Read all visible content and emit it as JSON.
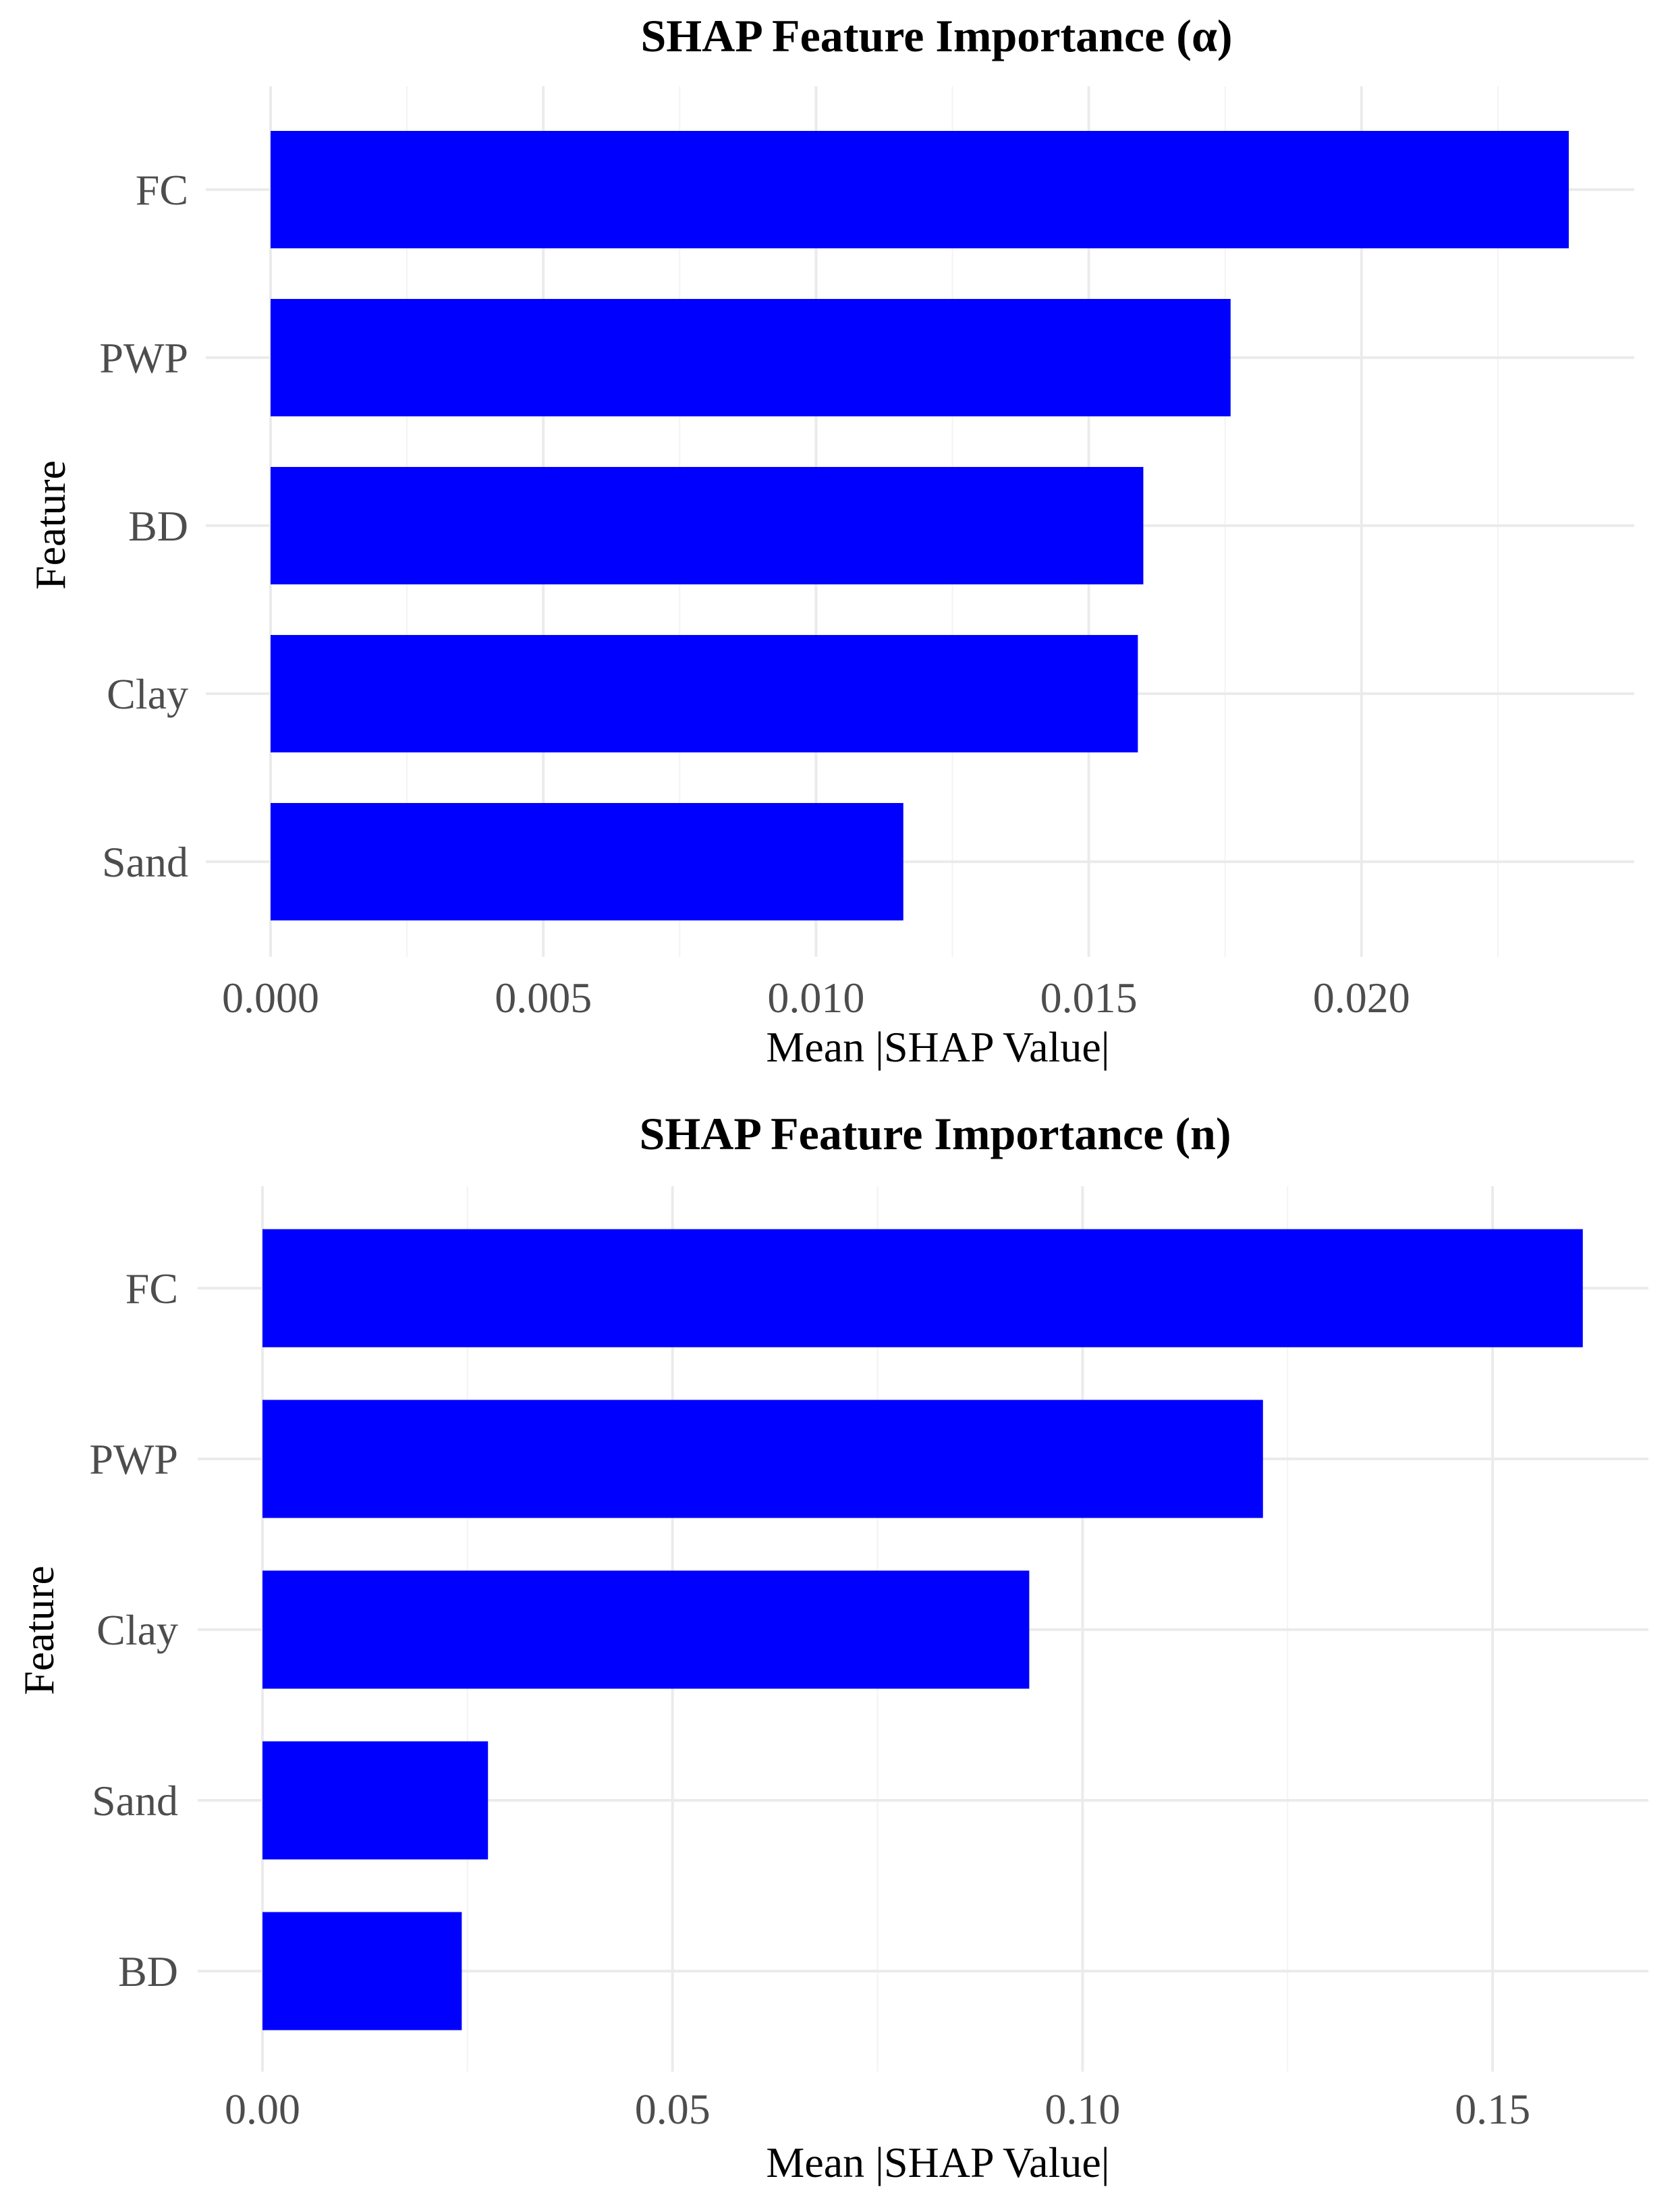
{
  "chart_data": [
    {
      "type": "bar",
      "orientation": "horizontal",
      "title": "SHAP Feature Importance (α)",
      "xlabel": "Mean |SHAP Value|",
      "ylabel": "Feature",
      "categories": [
        "FC",
        "PWP",
        "BD",
        "Clay",
        "Sand"
      ],
      "values": [
        0.0238,
        0.0176,
        0.016,
        0.0159,
        0.0116
      ],
      "xticks": [
        "0.000",
        "0.005",
        "0.010",
        "0.015",
        "0.020"
      ],
      "xtick_values": [
        0,
        0.005,
        0.01,
        0.015,
        0.02
      ],
      "xlim": [
        0,
        0.025
      ],
      "bar_color": "#0000ff",
      "grid": true
    },
    {
      "type": "bar",
      "orientation": "horizontal",
      "title": "SHAP Feature Importance (n)",
      "xlabel": "Mean |SHAP Value|",
      "ylabel": "Feature",
      "categories": [
        "FC",
        "PWP",
        "Clay",
        "Sand",
        "BD"
      ],
      "values": [
        0.161,
        0.122,
        0.0935,
        0.0275,
        0.0243
      ],
      "xticks": [
        "0.00",
        "0.05",
        "0.10",
        "0.15"
      ],
      "xtick_values": [
        0,
        0.05,
        0.1,
        0.15
      ],
      "xlim": [
        0,
        0.169
      ],
      "bar_color": "#0000ff",
      "grid": true
    }
  ]
}
